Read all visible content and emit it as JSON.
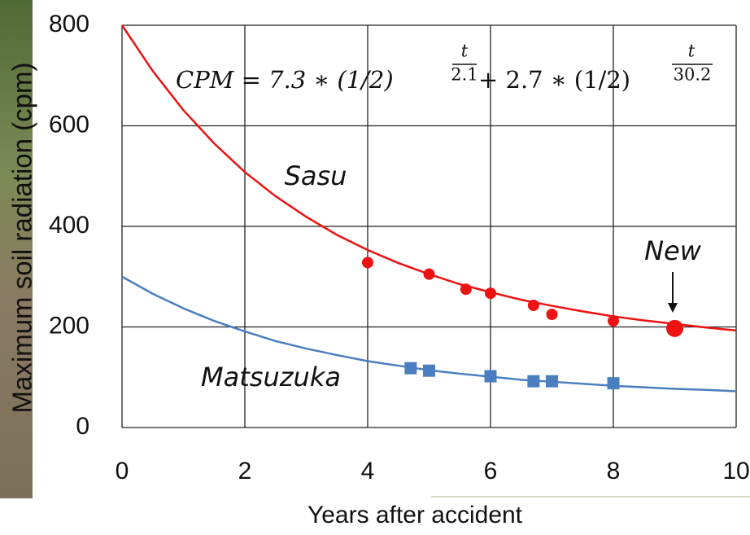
{
  "chart_data": {
    "type": "scatter",
    "xlabel": "Years after accident",
    "ylabel": "Maximum soil radiation (cpm)",
    "xlim": [
      0,
      10
    ],
    "ylim": [
      0,
      800
    ],
    "xticks": [
      0,
      2,
      4,
      6,
      8,
      10
    ],
    "yticks": [
      0,
      200,
      400,
      600,
      800
    ],
    "grid": true,
    "formula": {
      "lhs": "CPM = 7.3 ∗ (1/2)",
      "exp1_num": "t",
      "exp1_den": "2.1",
      "mid": " + 2.7 ∗ (1/2)",
      "exp2_num": "t",
      "exp2_den": "30.2"
    },
    "series": [
      {
        "name": "Sasu",
        "color": "#ee1111",
        "marker": "circle",
        "x": [
          4,
          5,
          5.6,
          6,
          6.7,
          7,
          8
        ],
        "values": [
          328,
          305,
          275,
          267,
          243,
          225,
          212
        ],
        "fit": {
          "x": [
            0,
            0.5,
            1,
            1.5,
            2,
            2.5,
            3,
            3.5,
            4,
            4.5,
            5,
            5.5,
            6,
            6.5,
            7,
            7.5,
            8,
            8.5,
            9,
            9.5,
            10
          ],
          "values": [
            800,
            709,
            631,
            565,
            508,
            460,
            419,
            383,
            353,
            327,
            305,
            285,
            269,
            254,
            242,
            231,
            221,
            213,
            206,
            199,
            193
          ]
        }
      },
      {
        "name": "Matsuzuka",
        "color": "#4a7ebf",
        "marker": "square",
        "x": [
          4.7,
          5,
          6,
          6.7,
          7,
          8
        ],
        "values": [
          118,
          113,
          102,
          92,
          92,
          88
        ],
        "fit": {
          "x": [
            0,
            0.5,
            1,
            1.5,
            2,
            2.5,
            3,
            3.5,
            4,
            4.5,
            5,
            5.5,
            6,
            6.5,
            7,
            7.5,
            8,
            8.5,
            9,
            9.5,
            10
          ],
          "values": [
            300,
            266,
            237,
            212,
            191,
            172,
            157,
            144,
            132,
            123,
            114,
            107,
            101,
            95,
            91,
            87,
            83,
            80,
            77,
            75,
            72
          ]
        }
      }
    ],
    "new_point": {
      "label": "New",
      "x": 9,
      "value": 197,
      "color": "#ee1111"
    }
  }
}
